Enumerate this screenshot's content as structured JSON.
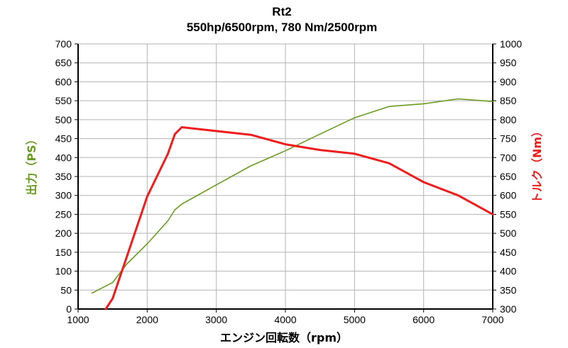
{
  "chart_data": {
    "type": "line",
    "title": "Rt2",
    "subtitle": "550hp/6500rpm, 780 Nm/2500rpm",
    "xlabel": "エンジン回転数（rpm）",
    "ylabel_left": "出力（PS）",
    "ylabel_right": "トルク（Nm）",
    "xlim": [
      1000,
      7000
    ],
    "ylim_left": [
      0,
      700
    ],
    "ylim_right": [
      300,
      1000
    ],
    "x_ticks": [
      "1000",
      "2000",
      "3000",
      "4000",
      "5000",
      "6000",
      "7000"
    ],
    "y_left_ticks": [
      "0",
      "50",
      "100",
      "150",
      "200",
      "250",
      "300",
      "350",
      "400",
      "450",
      "500",
      "550",
      "600",
      "650",
      "700"
    ],
    "y_right_ticks": [
      "300",
      "350",
      "400",
      "450",
      "500",
      "550",
      "600",
      "650",
      "700",
      "750",
      "800",
      "850",
      "900",
      "950",
      "1000"
    ],
    "grid": true,
    "colors": {
      "power": "#6a9a1f",
      "torque": "#ee1c1c"
    },
    "series": [
      {
        "axis": "left",
        "x": [
          1200,
          1500,
          1700,
          2000,
          2300,
          2400,
          2500,
          3000,
          3500,
          4000,
          4500,
          5000,
          5500,
          6000,
          6500,
          7000
        ],
        "values": [
          42,
          70,
          118,
          172,
          233,
          262,
          277,
          328,
          378,
          418,
          462,
          505,
          535,
          542,
          555,
          548
        ]
      },
      {
        "axis": "right",
        "x": [
          1400,
          1500,
          2000,
          2300,
          2400,
          2500,
          3000,
          3500,
          4000,
          4500,
          5000,
          5500,
          6000,
          6500,
          7000
        ],
        "values": [
          300,
          328,
          597,
          710,
          762,
          780,
          770,
          760,
          735,
          720,
          710,
          685,
          635,
          600,
          550
        ]
      }
    ]
  }
}
